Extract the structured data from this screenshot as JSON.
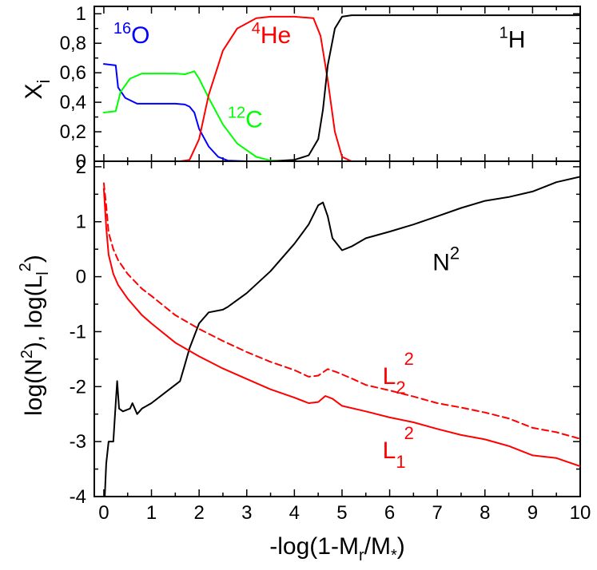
{
  "chart_data": [
    {
      "type": "line",
      "panel": "top",
      "ylabel": "X",
      "ylabel_sub": "i",
      "xlim": [
        -0.2,
        10
      ],
      "ylim": [
        0,
        1.05
      ],
      "ytick_labels": [
        "0",
        "0,2",
        "0,4",
        "0,6",
        "0,8",
        "1"
      ],
      "ytick_values": [
        0,
        0.2,
        0.4,
        0.6,
        0.8,
        1.0
      ],
      "annotations": [
        {
          "sup": "16",
          "text": "O",
          "color": "#0000ff",
          "x": 0.2,
          "y": 0.8
        },
        {
          "sup": "4",
          "text": "He",
          "color": "#ff0000",
          "x": 3.1,
          "y": 0.8
        },
        {
          "sup": "1",
          "text": "H",
          "color": "#000000",
          "x": 8.3,
          "y": 0.77
        },
        {
          "sup": "12",
          "text": "C",
          "color": "#00ff00",
          "x": 2.6,
          "y": 0.23
        }
      ],
      "series": [
        {
          "name": "16O",
          "color": "#0000ff",
          "points": [
            [
              0,
              0.66
            ],
            [
              0.25,
              0.65
            ],
            [
              0.3,
              0.5
            ],
            [
              0.45,
              0.43
            ],
            [
              0.7,
              0.39
            ],
            [
              1.0,
              0.39
            ],
            [
              1.5,
              0.39
            ],
            [
              1.7,
              0.385
            ],
            [
              1.8,
              0.37
            ],
            [
              1.9,
              0.33
            ],
            [
              2.0,
              0.22
            ],
            [
              2.2,
              0.1
            ],
            [
              2.4,
              0.03
            ],
            [
              2.6,
              0.005
            ],
            [
              3.0,
              0
            ],
            [
              10,
              0
            ]
          ]
        },
        {
          "name": "12C",
          "color": "#00ff00",
          "points": [
            [
              0,
              0.33
            ],
            [
              0.25,
              0.34
            ],
            [
              0.35,
              0.47
            ],
            [
              0.55,
              0.56
            ],
            [
              0.8,
              0.595
            ],
            [
              1.5,
              0.595
            ],
            [
              1.7,
              0.59
            ],
            [
              1.9,
              0.61
            ],
            [
              2.0,
              0.56
            ],
            [
              2.2,
              0.43
            ],
            [
              2.5,
              0.25
            ],
            [
              2.8,
              0.12
            ],
            [
              3.2,
              0.03
            ],
            [
              3.5,
              0.005
            ],
            [
              4.0,
              0
            ],
            [
              10,
              0
            ]
          ]
        },
        {
          "name": "4He",
          "color": "#ff0000",
          "points": [
            [
              0,
              0
            ],
            [
              1.6,
              0
            ],
            [
              1.8,
              0.01
            ],
            [
              2.0,
              0.15
            ],
            [
              2.2,
              0.45
            ],
            [
              2.5,
              0.75
            ],
            [
              2.8,
              0.9
            ],
            [
              3.2,
              0.97
            ],
            [
              3.5,
              0.98
            ],
            [
              4.0,
              0.98
            ],
            [
              4.4,
              0.97
            ],
            [
              4.55,
              0.85
            ],
            [
              4.7,
              0.55
            ],
            [
              4.85,
              0.2
            ],
            [
              5.0,
              0.03
            ],
            [
              5.2,
              0
            ],
            [
              10,
              0
            ]
          ]
        },
        {
          "name": "1H",
          "color": "#000000",
          "points": [
            [
              0,
              0
            ],
            [
              3.5,
              0
            ],
            [
              4.0,
              0.01
            ],
            [
              4.3,
              0.04
            ],
            [
              4.5,
              0.15
            ],
            [
              4.6,
              0.35
            ],
            [
              4.7,
              0.65
            ],
            [
              4.85,
              0.9
            ],
            [
              5.0,
              0.98
            ],
            [
              5.2,
              0.99
            ],
            [
              10,
              0.99
            ]
          ]
        }
      ]
    },
    {
      "type": "line",
      "panel": "bottom",
      "xlabel": "-log(1-M",
      "xlabel_sub": "r",
      "xlabel_rest": "/M",
      "xlabel_sub2": "*",
      "xlabel_end": ")",
      "ylabel": "log(N",
      "ylabel_sup": "2",
      "ylabel_mid": "), log(L",
      "ylabel_sub": "l",
      "ylabel_sup2": "2",
      "ylabel_end": ")",
      "xlim": [
        -0.2,
        10
      ],
      "ylim": [
        -4,
        2.1
      ],
      "xtick_labels": [
        "0",
        "1",
        "2",
        "3",
        "4",
        "5",
        "6",
        "7",
        "8",
        "9",
        "10"
      ],
      "xtick_values": [
        0,
        1,
        2,
        3,
        4,
        5,
        6,
        7,
        8,
        9,
        10
      ],
      "ytick_labels": [
        "-4",
        "-3",
        "-2",
        "-1",
        "0",
        "1",
        "2"
      ],
      "ytick_values": [
        -4,
        -3,
        -2,
        -1,
        0,
        1,
        2
      ],
      "annotations": [
        {
          "text": "N",
          "sup": "2",
          "color": "#000000",
          "x": 6.9,
          "y": 0.12
        },
        {
          "text": "L",
          "sub": "2",
          "sup": "2",
          "color": "#ff0000",
          "x": 5.85,
          "y": -1.95
        },
        {
          "text": "L",
          "sub": "1",
          "sup": "2",
          "color": "#ff0000",
          "x": 5.85,
          "y": -3.3
        }
      ],
      "series": [
        {
          "name": "N2",
          "color": "#000000",
          "dash": "",
          "points": [
            [
              0.02,
              -4
            ],
            [
              0.05,
              -3.4
            ],
            [
              0.1,
              -3.0
            ],
            [
              0.2,
              -3.0
            ],
            [
              0.25,
              -2.3
            ],
            [
              0.28,
              -1.9
            ],
            [
              0.32,
              -2.4
            ],
            [
              0.4,
              -2.45
            ],
            [
              0.55,
              -2.4
            ],
            [
              0.6,
              -2.3
            ],
            [
              0.7,
              -2.5
            ],
            [
              0.8,
              -2.4
            ],
            [
              1.0,
              -2.3
            ],
            [
              1.3,
              -2.1
            ],
            [
              1.6,
              -1.9
            ],
            [
              1.7,
              -1.6
            ],
            [
              1.8,
              -1.3
            ],
            [
              2.0,
              -0.85
            ],
            [
              2.2,
              -0.65
            ],
            [
              2.5,
              -0.6
            ],
            [
              2.6,
              -0.55
            ],
            [
              3.0,
              -0.3
            ],
            [
              3.5,
              0.1
            ],
            [
              4.0,
              0.6
            ],
            [
              4.3,
              0.95
            ],
            [
              4.5,
              1.3
            ],
            [
              4.6,
              1.35
            ],
            [
              4.7,
              1.1
            ],
            [
              4.8,
              0.7
            ],
            [
              5.0,
              0.48
            ],
            [
              5.2,
              0.55
            ],
            [
              5.5,
              0.7
            ],
            [
              6.0,
              0.82
            ],
            [
              6.5,
              0.95
            ],
            [
              7.0,
              1.1
            ],
            [
              7.5,
              1.25
            ],
            [
              8.0,
              1.38
            ],
            [
              8.5,
              1.45
            ],
            [
              9.0,
              1.55
            ],
            [
              9.5,
              1.72
            ],
            [
              10,
              1.82
            ]
          ]
        },
        {
          "name": "L1^2",
          "color": "#ff0000",
          "dash": "",
          "points": [
            [
              0,
              1.6
            ],
            [
              0.05,
              0.9
            ],
            [
              0.1,
              0.4
            ],
            [
              0.2,
              0.05
            ],
            [
              0.3,
              -0.15
            ],
            [
              0.5,
              -0.4
            ],
            [
              0.8,
              -0.7
            ],
            [
              1.0,
              -0.85
            ],
            [
              1.5,
              -1.2
            ],
            [
              2.0,
              -1.45
            ],
            [
              2.5,
              -1.67
            ],
            [
              3.0,
              -1.86
            ],
            [
              3.5,
              -2.05
            ],
            [
              4.0,
              -2.2
            ],
            [
              4.3,
              -2.3
            ],
            [
              4.5,
              -2.28
            ],
            [
              4.65,
              -2.17
            ],
            [
              4.8,
              -2.22
            ],
            [
              5.0,
              -2.35
            ],
            [
              5.5,
              -2.45
            ],
            [
              6.0,
              -2.56
            ],
            [
              6.5,
              -2.65
            ],
            [
              7.0,
              -2.77
            ],
            [
              7.5,
              -2.88
            ],
            [
              8.0,
              -2.96
            ],
            [
              8.5,
              -3.08
            ],
            [
              9.0,
              -3.25
            ],
            [
              9.5,
              -3.3
            ],
            [
              10,
              -3.45
            ]
          ]
        },
        {
          "name": "L2^2",
          "color": "#ff0000",
          "dash": "8,5",
          "points": [
            [
              0,
              1.7
            ],
            [
              0.05,
              1.3
            ],
            [
              0.1,
              0.8
            ],
            [
              0.2,
              0.5
            ],
            [
              0.3,
              0.3
            ],
            [
              0.5,
              0.05
            ],
            [
              0.8,
              -0.22
            ],
            [
              1.0,
              -0.35
            ],
            [
              1.5,
              -0.7
            ],
            [
              2.0,
              -0.95
            ],
            [
              2.5,
              -1.17
            ],
            [
              3.0,
              -1.37
            ],
            [
              3.5,
              -1.55
            ],
            [
              4.0,
              -1.7
            ],
            [
              4.3,
              -1.82
            ],
            [
              4.5,
              -1.8
            ],
            [
              4.7,
              -1.68
            ],
            [
              4.9,
              -1.74
            ],
            [
              5.2,
              -1.85
            ],
            [
              5.5,
              -1.97
            ],
            [
              6.0,
              -2.07
            ],
            [
              6.5,
              -2.18
            ],
            [
              7.0,
              -2.3
            ],
            [
              7.5,
              -2.38
            ],
            [
              8.0,
              -2.47
            ],
            [
              8.5,
              -2.58
            ],
            [
              9.0,
              -2.75
            ],
            [
              9.5,
              -2.83
            ],
            [
              10,
              -2.95
            ]
          ]
        }
      ]
    }
  ]
}
